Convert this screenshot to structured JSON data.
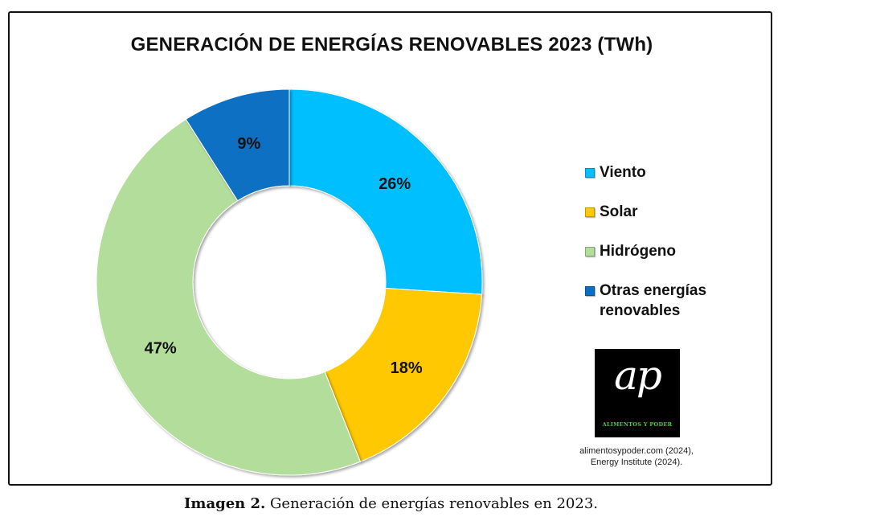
{
  "chart_data": {
    "type": "pie",
    "title": "GENERACIÓN DE ENERGÍAS RENOVABLES 2023 (TWh)",
    "donut": true,
    "legend_position": "right",
    "slices": [
      {
        "label": "Viento",
        "value": 26,
        "data_label": "26%",
        "color": "#00bfff"
      },
      {
        "label": "Solar",
        "value": 18,
        "data_label": "18%",
        "color": "#ffc800"
      },
      {
        "label": "Hidrógeno",
        "value": 47,
        "data_label": "47%",
        "color": "#b3dd9b"
      },
      {
        "label": "Otras energías renovables",
        "value": 9,
        "data_label": "9%",
        "color": "#0a6fc2"
      }
    ]
  },
  "logo": {
    "text": "ap",
    "subtitle": "ALIMENTOS Y PODER"
  },
  "source": {
    "line1": "alimentosypoder.com (2024),",
    "line2": "Energy Institute (2024)."
  },
  "caption": {
    "prefix": "Imagen 2.",
    "text": "Generación de energías renovables en 2023."
  }
}
